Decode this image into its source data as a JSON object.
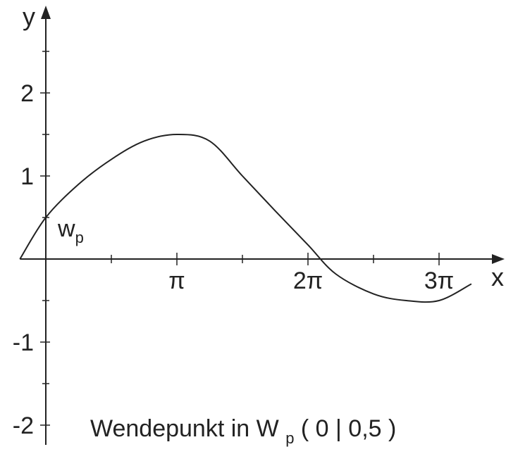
{
  "chart_data": {
    "type": "line",
    "title": "",
    "xlabel": "x",
    "ylabel": "y",
    "xlim": [
      -0.62,
      10.2
    ],
    "ylim": [
      -2.25,
      3.0
    ],
    "x_ticks": [
      {
        "value": 3.14159,
        "label": "π"
      },
      {
        "value": 6.28319,
        "label": "2π"
      },
      {
        "value": 9.42478,
        "label": "3π"
      }
    ],
    "x_minor_ticks": [
      1.5708,
      4.7124,
      7.854
    ],
    "y_ticks": [
      {
        "value": 2,
        "label": "2"
      },
      {
        "value": 1,
        "label": "1"
      },
      {
        "value": -1,
        "label": "-1"
      },
      {
        "value": -2,
        "label": "-2"
      }
    ],
    "y_minor_ticks": [
      2.5,
      1.5,
      0.5,
      -0.5,
      -1.5
    ],
    "series": [
      {
        "name": "",
        "points": [
          {
            "x": -0.62,
            "y": 0.0
          },
          {
            "x": 0.0,
            "y": 0.5
          },
          {
            "x": 0.7854,
            "y": 0.9
          },
          {
            "x": 1.5708,
            "y": 1.2
          },
          {
            "x": 2.3562,
            "y": 1.42
          },
          {
            "x": 3.14159,
            "y": 1.5
          },
          {
            "x": 3.927,
            "y": 1.42
          },
          {
            "x": 4.7124,
            "y": 1.0
          },
          {
            "x": 5.4978,
            "y": 0.58
          },
          {
            "x": 6.28319,
            "y": 0.17
          },
          {
            "x": 6.95,
            "y": -0.18
          },
          {
            "x": 7.854,
            "y": -0.42
          },
          {
            "x": 8.639,
            "y": -0.5
          },
          {
            "x": 9.42478,
            "y": -0.5
          },
          {
            "x": 10.2,
            "y": -0.3
          }
        ]
      }
    ],
    "annotations": [
      {
        "x": 0.0,
        "y": 0.5,
        "text": "w",
        "subscript": "p"
      }
    ],
    "grid": false
  },
  "caption": {
    "main": "Wendepunkt in W",
    "subscript": "p",
    "coords": " ( 0 | 0,5 )"
  }
}
